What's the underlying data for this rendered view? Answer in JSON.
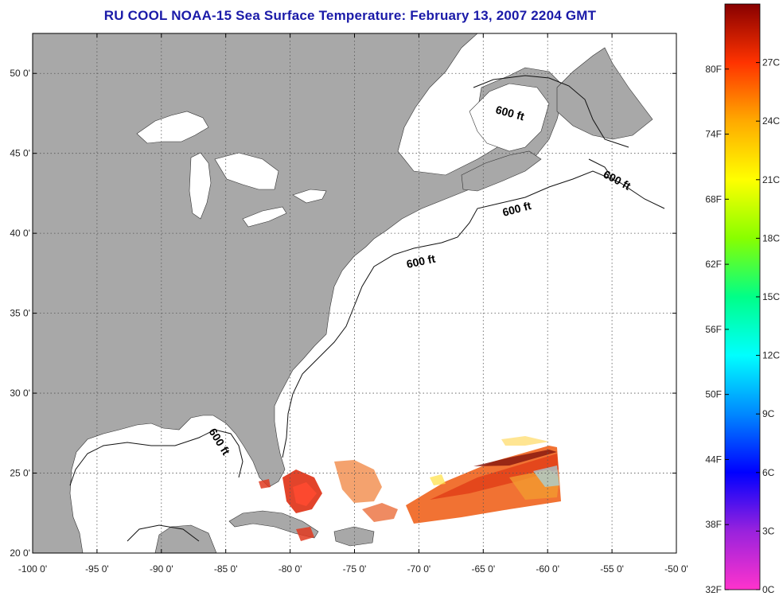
{
  "title": "RU COOL  NOAA-15  Sea Surface Temperature:  February 13, 2007 2204 GMT",
  "map": {
    "longitude_labels": [
      "-100 0'",
      "-95 0'",
      "-90 0'",
      "-85 0'",
      "-80 0'",
      "-75 0'",
      "-70 0'",
      "-65 0'",
      "-60 0'",
      "-55 0'",
      "-50 0'"
    ],
    "latitude_labels": [
      "50 0'",
      "45 0'",
      "40 0'",
      "35 0'",
      "30 0'",
      "25 0'",
      "20 0'"
    ],
    "lon_range": [
      -100,
      -50
    ],
    "lat_range": [
      20,
      52.5
    ],
    "grid": true,
    "land_color": "#a8a8a8",
    "ocean_color": "#ffffff",
    "contour_labels": [
      "600 ft",
      "600 ft",
      "600 ft",
      "600 ft",
      "600 ft"
    ]
  },
  "colorbar": {
    "fahrenheit_labels": [
      "80F",
      "74F",
      "68F",
      "62F",
      "56F",
      "50F",
      "44F",
      "38F",
      "32F"
    ],
    "celsius_labels": [
      "27C",
      "24C",
      "21C",
      "18C",
      "15C",
      "12C",
      "9C",
      "6C",
      "3C",
      "0C"
    ],
    "colors": [
      "#ff33cc",
      "#9922dd",
      "#0000ff",
      "#0088ff",
      "#00ffff",
      "#00ff88",
      "#88ff00",
      "#ffff00",
      "#ffaa00",
      "#ff3300",
      "#880000"
    ]
  }
}
